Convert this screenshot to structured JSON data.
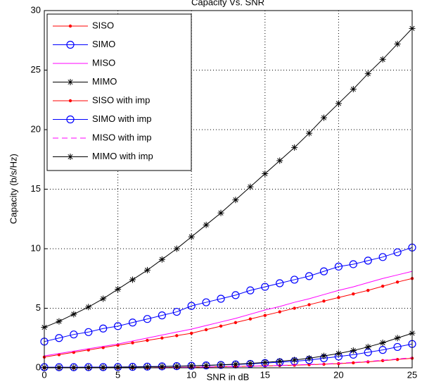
{
  "chart_data": {
    "type": "line",
    "title": "Capacity Vs. SNR",
    "xlabel": "SNR in dB",
    "ylabel": "Capacity (b/s/Hz)",
    "x": [
      0,
      1,
      2,
      3,
      4,
      5,
      6,
      7,
      8,
      9,
      10,
      11,
      12,
      13,
      14,
      15,
      16,
      17,
      18,
      19,
      20,
      21,
      22,
      23,
      24,
      25
    ],
    "xlim": [
      0,
      25
    ],
    "xticks": [
      0,
      5,
      10,
      15,
      20,
      25
    ],
    "ylim": [
      0,
      30
    ],
    "yticks": [
      0,
      5,
      10,
      15,
      20,
      25,
      30
    ],
    "grid": true,
    "legend": "upper-left",
    "series": [
      {
        "name": "SISO",
        "color": "#ff0000",
        "marker": "dot",
        "linestyle": "solid",
        "values": [
          0.9,
          1.1,
          1.3,
          1.5,
          1.7,
          1.9,
          2.1,
          2.3,
          2.5,
          2.7,
          2.9,
          3.2,
          3.5,
          3.8,
          4.1,
          4.4,
          4.7,
          5.0,
          5.3,
          5.6,
          5.9,
          6.2,
          6.5,
          6.85,
          7.2,
          7.5
        ]
      },
      {
        "name": "SIMO",
        "color": "#0000ff",
        "marker": "circle",
        "linestyle": "solid",
        "values": [
          2.2,
          2.5,
          2.8,
          3.0,
          3.3,
          3.5,
          3.8,
          4.1,
          4.4,
          4.7,
          5.2,
          5.5,
          5.8,
          6.1,
          6.5,
          6.8,
          7.1,
          7.4,
          7.7,
          8.1,
          8.5,
          8.7,
          9.0,
          9.3,
          9.7,
          10.1
        ]
      },
      {
        "name": "MISO",
        "color": "#ff00ff",
        "marker": "none",
        "linestyle": "solid",
        "values": [
          1.0,
          1.2,
          1.4,
          1.6,
          1.8,
          2.0,
          2.25,
          2.5,
          2.75,
          3.0,
          3.25,
          3.55,
          3.85,
          4.15,
          4.5,
          4.85,
          5.15,
          5.5,
          5.8,
          6.15,
          6.5,
          6.8,
          7.15,
          7.5,
          7.8,
          8.1
        ]
      },
      {
        "name": "MIMO",
        "color": "#000000",
        "marker": "star",
        "linestyle": "solid",
        "values": [
          3.4,
          3.9,
          4.5,
          5.1,
          5.8,
          6.6,
          7.4,
          8.2,
          9.1,
          10.0,
          11.0,
          12.0,
          13.0,
          14.1,
          15.2,
          16.3,
          17.4,
          18.5,
          19.7,
          21.0,
          22.2,
          23.4,
          24.7,
          25.9,
          27.2,
          28.5
        ]
      },
      {
        "name": "SISO with imp",
        "color": "#ff0000",
        "marker": "dot",
        "linestyle": "solid",
        "values": [
          0,
          0,
          0,
          0,
          0,
          0,
          0,
          0,
          0.02,
          0.03,
          0.05,
          0.07,
          0.09,
          0.11,
          0.13,
          0.16,
          0.19,
          0.22,
          0.26,
          0.3,
          0.35,
          0.42,
          0.5,
          0.6,
          0.7,
          0.8
        ]
      },
      {
        "name": "SIMO with imp",
        "color": "#0000ff",
        "marker": "circle",
        "linestyle": "solid",
        "values": [
          0.05,
          0.05,
          0.05,
          0.06,
          0.06,
          0.07,
          0.08,
          0.1,
          0.12,
          0.14,
          0.17,
          0.2,
          0.24,
          0.28,
          0.33,
          0.4,
          0.47,
          0.55,
          0.65,
          0.8,
          0.95,
          1.1,
          1.3,
          1.5,
          1.75,
          2.0
        ]
      },
      {
        "name": "MISO with imp",
        "color": "#ff00ff",
        "marker": "none",
        "linestyle": "dashed",
        "values": [
          0,
          0,
          0,
          0,
          0,
          0,
          0,
          0,
          0.02,
          0.03,
          0.05,
          0.07,
          0.09,
          0.11,
          0.14,
          0.17,
          0.2,
          0.24,
          0.28,
          0.32,
          0.38,
          0.45,
          0.53,
          0.63,
          0.74,
          0.85
        ]
      },
      {
        "name": "MIMO with imp",
        "color": "#000000",
        "marker": "star",
        "linestyle": "solid",
        "values": [
          0.02,
          0.02,
          0.03,
          0.03,
          0.04,
          0.05,
          0.06,
          0.08,
          0.1,
          0.13,
          0.16,
          0.2,
          0.25,
          0.3,
          0.37,
          0.45,
          0.55,
          0.66,
          0.8,
          1.0,
          1.2,
          1.45,
          1.75,
          2.1,
          2.5,
          2.9
        ]
      }
    ]
  }
}
